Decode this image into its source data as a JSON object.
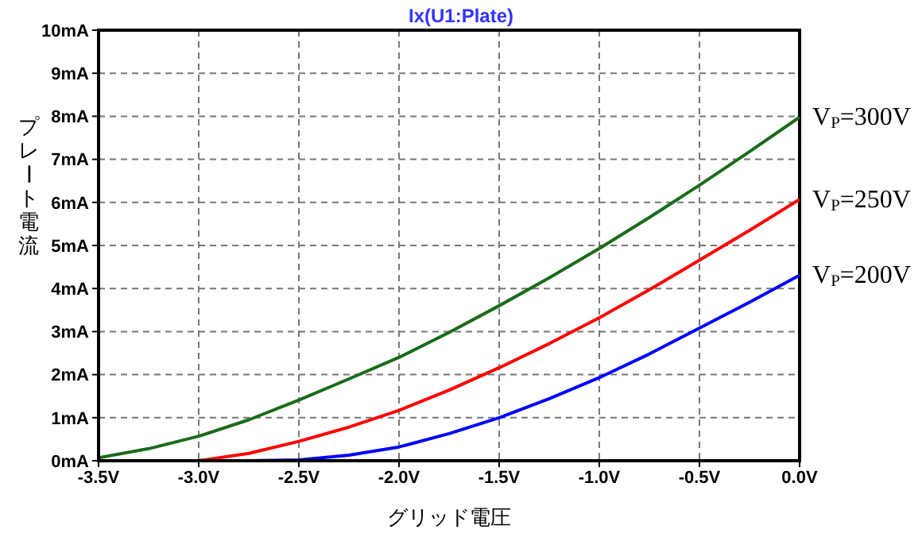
{
  "chart_data": {
    "type": "line",
    "title": "Ix(U1:Plate)",
    "xlabel": "グリッド電圧",
    "ylabel": "プレート電流",
    "x": [
      -3.5,
      -3.25,
      -3.0,
      -2.75,
      -2.5,
      -2.25,
      -2.0,
      -1.75,
      -1.5,
      -1.25,
      -1.0,
      -0.75,
      -0.5,
      -0.25,
      0.0
    ],
    "series": [
      {
        "name": "V$_{P}$=300V",
        "color": "#1a6b1a",
        "values": [
          0.07,
          0.28,
          0.57,
          0.95,
          1.41,
          1.9,
          2.4,
          2.98,
          3.6,
          4.25,
          4.93,
          5.65,
          6.4,
          7.18,
          7.98
        ]
      },
      {
        "name": "V$_{P}$=250V",
        "color": "#ff0000",
        "values": [
          0,
          0,
          0,
          0.17,
          0.45,
          0.78,
          1.17,
          1.64,
          2.16,
          2.72,
          3.32,
          3.97,
          4.66,
          5.35,
          6.07
        ]
      },
      {
        "name": "V$_{P}$=200V",
        "color": "#0000ff",
        "values": [
          null,
          null,
          0,
          0,
          0.02,
          0.13,
          0.32,
          0.63,
          1.0,
          1.44,
          1.93,
          2.48,
          3.08,
          3.68,
          4.31
        ]
      }
    ],
    "xlim": [
      -3.5,
      0
    ],
    "xticks": [
      {
        "value": -3.5,
        "label": "-3.5V"
      },
      {
        "value": -3,
        "label": "-3.0V"
      },
      {
        "value": -2.5,
        "label": "-2.5V"
      },
      {
        "value": -2,
        "label": "-2.0V"
      },
      {
        "value": -1.5,
        "label": "-1.5V"
      },
      {
        "value": -1,
        "label": "-1.0V"
      },
      {
        "value": -0.5,
        "label": "-0.5V"
      },
      {
        "value": 0,
        "label": "0.0V"
      }
    ],
    "ylim": [
      0,
      10
    ],
    "yticks": [
      {
        "value": 0,
        "label": "0mA"
      },
      {
        "value": 1,
        "label": "1mA"
      },
      {
        "value": 2,
        "label": "2mA"
      },
      {
        "value": 3,
        "label": "3mA"
      },
      {
        "value": 4,
        "label": "4mA"
      },
      {
        "value": 5,
        "label": "5mA"
      },
      {
        "value": 6,
        "label": "6mA"
      },
      {
        "value": 7,
        "label": "7mA"
      },
      {
        "value": 8,
        "label": "8mA"
      },
      {
        "value": 9,
        "label": "9mA"
      },
      {
        "value": 10,
        "label": "10mA"
      }
    ],
    "grid": true,
    "legend": false,
    "marker": "none",
    "line_style": "solid"
  }
}
